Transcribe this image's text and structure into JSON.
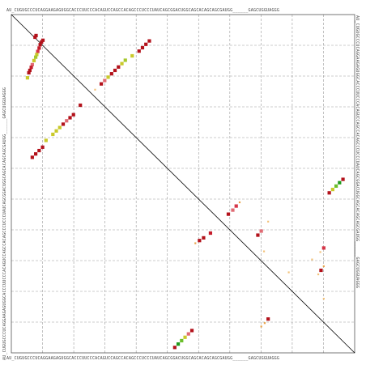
{
  "sequence": "AU_CUGUGCCCUCAGGAAGAGUGGCACCCUUCCCACAGUCCAGCCACAGCCCUCCCUAUCAGCGGACUGGCAGCACAGCAGCGAUGG______GAGCUGGUAGGG",
  "grid": {
    "divisions": 11,
    "style": "dashed"
  },
  "colors": {
    "grid": "#9a9a9a",
    "frame": "#555555",
    "diagonal": "#000000",
    "palette": [
      "#b3121b",
      "#c51d2b",
      "#d63547",
      "#e06b74",
      "#c9c92a",
      "#a6c82e",
      "#6bbf2b",
      "#229a1d",
      "#e8a34a",
      "#f3c27a"
    ]
  },
  "dots": [
    {
      "r": 0.062,
      "c": 0.072,
      "k": 0
    },
    {
      "r": 0.067,
      "c": 0.069,
      "k": 0
    },
    {
      "r": 0.076,
      "c": 0.092,
      "k": 0
    },
    {
      "r": 0.081,
      "c": 0.088,
      "k": 0
    },
    {
      "r": 0.089,
      "c": 0.084,
      "k": 0
    },
    {
      "r": 0.099,
      "c": 0.081,
      "k": 1
    },
    {
      "r": 0.109,
      "c": 0.077,
      "k": 2
    },
    {
      "r": 0.118,
      "c": 0.074,
      "k": 4
    },
    {
      "r": 0.126,
      "c": 0.071,
      "k": 5
    },
    {
      "r": 0.136,
      "c": 0.066,
      "k": 4
    },
    {
      "r": 0.148,
      "c": 0.061,
      "k": 3
    },
    {
      "r": 0.156,
      "c": 0.058,
      "k": 1
    },
    {
      "r": 0.165,
      "c": 0.054,
      "k": 0
    },
    {
      "r": 0.172,
      "c": 0.051,
      "k": 0
    },
    {
      "r": 0.187,
      "c": 0.047,
      "k": 4
    },
    {
      "r": 0.205,
      "c": 0.262,
      "k": 0
    },
    {
      "r": 0.195,
      "c": 0.272,
      "k": 3
    },
    {
      "r": 0.185,
      "c": 0.282,
      "k": 4
    },
    {
      "r": 0.175,
      "c": 0.292,
      "k": 0
    },
    {
      "r": 0.165,
      "c": 0.302,
      "k": 0
    },
    {
      "r": 0.155,
      "c": 0.312,
      "k": 0
    },
    {
      "r": 0.145,
      "c": 0.322,
      "k": 4
    },
    {
      "r": 0.135,
      "c": 0.332,
      "k": 5
    },
    {
      "r": 0.122,
      "c": 0.352,
      "k": 4
    },
    {
      "r": 0.108,
      "c": 0.372,
      "k": 0
    },
    {
      "r": 0.098,
      "c": 0.382,
      "k": 0
    },
    {
      "r": 0.088,
      "c": 0.392,
      "k": 0
    },
    {
      "r": 0.078,
      "c": 0.402,
      "k": 0
    },
    {
      "r": 0.222,
      "c": 0.244,
      "k": 9
    },
    {
      "r": 0.268,
      "c": 0.201,
      "k": 0
    },
    {
      "r": 0.296,
      "c": 0.181,
      "k": 0
    },
    {
      "r": 0.305,
      "c": 0.171,
      "k": 0
    },
    {
      "r": 0.314,
      "c": 0.161,
      "k": 3
    },
    {
      "r": 0.324,
      "c": 0.151,
      "k": 0
    },
    {
      "r": 0.334,
      "c": 0.141,
      "k": 4
    },
    {
      "r": 0.344,
      "c": 0.131,
      "k": 4
    },
    {
      "r": 0.354,
      "c": 0.121,
      "k": 4
    },
    {
      "r": 0.372,
      "c": 0.101,
      "k": 4
    },
    {
      "r": 0.392,
      "c": 0.091,
      "k": 0
    },
    {
      "r": 0.402,
      "c": 0.081,
      "k": 0
    },
    {
      "r": 0.412,
      "c": 0.071,
      "k": 0
    },
    {
      "r": 0.422,
      "c": 0.061,
      "k": 0
    },
    {
      "r": 0.487,
      "c": 0.966,
      "k": 0
    },
    {
      "r": 0.497,
      "c": 0.956,
      "k": 7
    },
    {
      "r": 0.507,
      "c": 0.946,
      "k": 6
    },
    {
      "r": 0.517,
      "c": 0.936,
      "k": 4
    },
    {
      "r": 0.527,
      "c": 0.926,
      "k": 0
    },
    {
      "r": 0.555,
      "c": 0.665,
      "k": 8
    },
    {
      "r": 0.566,
      "c": 0.655,
      "k": 2
    },
    {
      "r": 0.578,
      "c": 0.645,
      "k": 3
    },
    {
      "r": 0.59,
      "c": 0.632,
      "k": 0
    },
    {
      "r": 0.612,
      "c": 0.748,
      "k": 9
    },
    {
      "r": 0.646,
      "c": 0.58,
      "k": 1
    },
    {
      "r": 0.66,
      "c": 0.56,
      "k": 0
    },
    {
      "r": 0.668,
      "c": 0.548,
      "k": 0
    },
    {
      "r": 0.676,
      "c": 0.536,
      "k": 8
    },
    {
      "r": 0.64,
      "c": 0.728,
      "k": 3
    },
    {
      "r": 0.652,
      "c": 0.718,
      "k": 0
    },
    {
      "r": 0.7,
      "c": 0.736,
      "k": 9
    },
    {
      "r": 0.69,
      "c": 0.91,
      "k": 2
    },
    {
      "r": 0.702,
      "c": 0.9,
      "k": 9
    },
    {
      "r": 0.724,
      "c": 0.876,
      "k": 9
    },
    {
      "r": 0.744,
      "c": 0.91,
      "k": 8
    },
    {
      "r": 0.756,
      "c": 0.902,
      "k": 0
    },
    {
      "r": 0.768,
      "c": 0.894,
      "k": 9
    },
    {
      "r": 0.762,
      "c": 0.808,
      "k": 9
    },
    {
      "r": 0.84,
      "c": 0.91,
      "k": 9
    },
    {
      "r": 0.9,
      "c": 0.748,
      "k": 0
    },
    {
      "r": 0.912,
      "c": 0.738,
      "k": 8
    },
    {
      "r": 0.922,
      "c": 0.728,
      "k": 8
    },
    {
      "r": 0.934,
      "c": 0.526,
      "k": 0
    },
    {
      "r": 0.944,
      "c": 0.516,
      "k": 3
    },
    {
      "r": 0.954,
      "c": 0.506,
      "k": 4
    },
    {
      "r": 0.964,
      "c": 0.496,
      "k": 6
    },
    {
      "r": 0.974,
      "c": 0.486,
      "k": 7
    },
    {
      "r": 0.984,
      "c": 0.476,
      "k": 0
    }
  ]
}
